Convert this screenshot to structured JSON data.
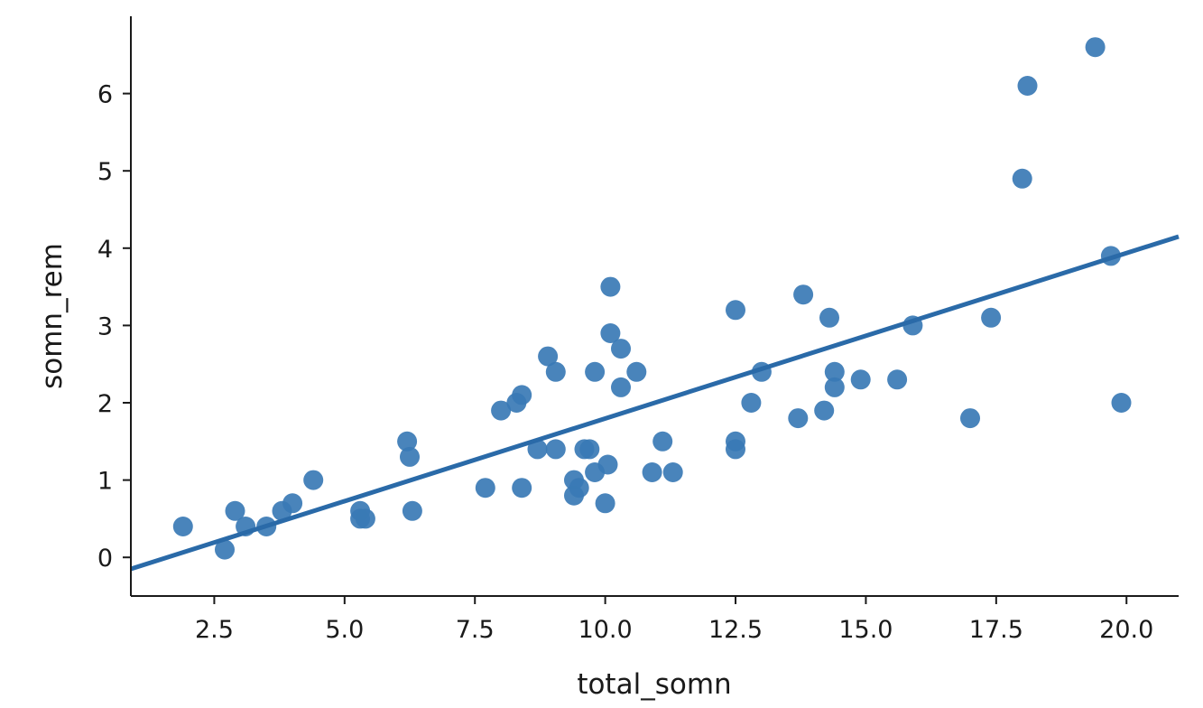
{
  "chart_data": {
    "type": "scatter",
    "title": "",
    "xlabel": "total_somn",
    "ylabel": "somn_rem",
    "xlim": [
      0.9,
      21.0
    ],
    "ylim": [
      -0.5,
      7.0
    ],
    "xticks": [
      "2.5",
      "5.0",
      "7.5",
      "10.0",
      "12.5",
      "15.0",
      "17.5",
      "20.0"
    ],
    "yticks": [
      "0",
      "1",
      "2",
      "3",
      "4",
      "5",
      "6"
    ],
    "grid": false,
    "colors": {
      "points": "#3a7ab5",
      "line": "#2a6aa8",
      "axis": "#1a1a1a"
    },
    "regression_line": {
      "x": [
        0.9,
        21.0
      ],
      "y": [
        -0.15,
        4.15
      ]
    },
    "series": [
      {
        "x": [
          1.9,
          2.7,
          2.9,
          3.1,
          3.5,
          3.8,
          4.0,
          4.4,
          5.3,
          5.3,
          5.4,
          6.2,
          6.25,
          6.3,
          7.7,
          8.0,
          8.3,
          8.4,
          8.4,
          8.7,
          8.9,
          9.05,
          9.05,
          9.4,
          9.4,
          9.5,
          9.6,
          9.7,
          9.8,
          9.8,
          10.0,
          10.05,
          10.1,
          10.1,
          10.3,
          10.3,
          10.6,
          10.9,
          11.1,
          11.3,
          12.5,
          12.5,
          12.5,
          12.8,
          13.0,
          13.7,
          13.8,
          14.2,
          14.3,
          14.4,
          14.4,
          14.9,
          15.6,
          15.9,
          17.0,
          17.4,
          18.0,
          18.1,
          19.4,
          19.7,
          19.9
        ],
        "y": [
          0.4,
          0.1,
          0.6,
          0.4,
          0.4,
          0.6,
          0.7,
          1.0,
          0.6,
          0.5,
          0.5,
          1.5,
          1.3,
          0.6,
          0.9,
          1.9,
          2.0,
          2.1,
          0.9,
          1.4,
          2.6,
          2.4,
          1.4,
          1.0,
          0.8,
          0.9,
          1.4,
          1.4,
          2.4,
          1.1,
          0.7,
          1.2,
          3.5,
          2.9,
          2.7,
          2.2,
          2.4,
          1.1,
          1.5,
          1.1,
          3.2,
          1.5,
          1.4,
          2.0,
          2.4,
          1.8,
          3.4,
          1.9,
          3.1,
          2.4,
          2.2,
          2.3,
          2.3,
          3.0,
          1.8,
          3.1,
          4.9,
          6.1,
          6.6,
          3.9,
          2.0
        ]
      }
    ]
  }
}
